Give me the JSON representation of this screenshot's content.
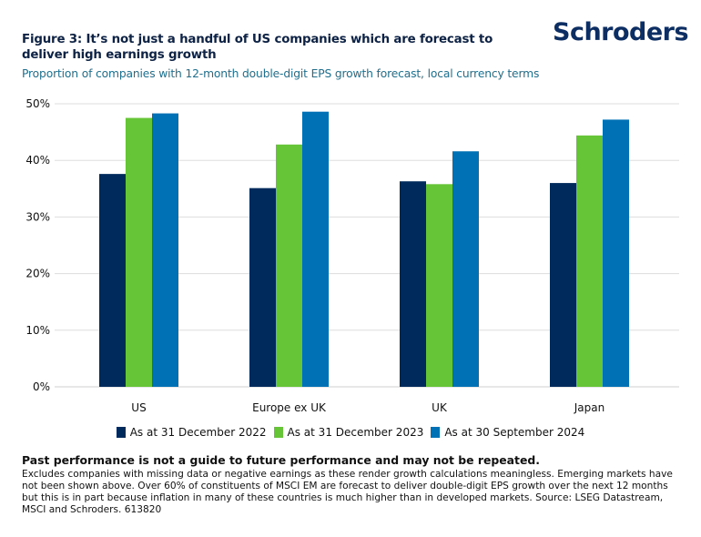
{
  "header": {
    "title": "Figure 3: It’s not just a handful of US companies which are forecast to deliver high earnings growth",
    "subtitle": "Proportion of companies with 12-month double-digit EPS growth forecast, local currency terms",
    "logo": "Schroders"
  },
  "colors": {
    "title": "#0d2244",
    "subtitle": "#1f6f8e",
    "logo": "#0d2e62",
    "gridline": "#dddddd"
  },
  "chart_data": {
    "type": "bar",
    "title": "Figure 3: It’s not just a handful of US companies which are forecast to deliver high earnings growth",
    "subtitle": "Proportion of companies with 12-month double-digit EPS growth forecast, local currency terms",
    "xlabel": "",
    "ylabel": "",
    "categories": [
      "US",
      "Europe ex UK",
      "UK",
      "Japan"
    ],
    "series": [
      {
        "name": "As at 31 December 2022",
        "color": "#002a5c",
        "values": [
          37.6,
          35.1,
          36.3,
          36.0
        ]
      },
      {
        "name": "As at 31 December 2023",
        "color": "#66c437",
        "values": [
          47.5,
          42.8,
          35.8,
          44.4
        ]
      },
      {
        "name": "As at 30 September 2024",
        "color": "#0071b4",
        "values": [
          48.3,
          48.6,
          41.6,
          47.2
        ]
      }
    ],
    "ylim": [
      0,
      50
    ],
    "yticks": [
      0,
      10,
      20,
      30,
      40,
      50
    ],
    "ytick_labels": [
      "0%",
      "10%",
      "20%",
      "30%",
      "40%",
      "50%"
    ],
    "grid": true,
    "legend_position": "bottom"
  },
  "footer": {
    "disclaimer": "Past performance is not a guide to future performance and may not be repeated.",
    "notes": "Excludes companies with missing data or negative earnings as these render growth calculations meaningless. Emerging markets have not been shown above. Over 60% of constituents of MSCI EM are forecast to deliver double-digit EPS growth over the next 12 months but this is in part because inflation in many of these countries is much higher than in developed markets. Source: LSEG Datastream, MSCI and Schroders. 613820"
  }
}
